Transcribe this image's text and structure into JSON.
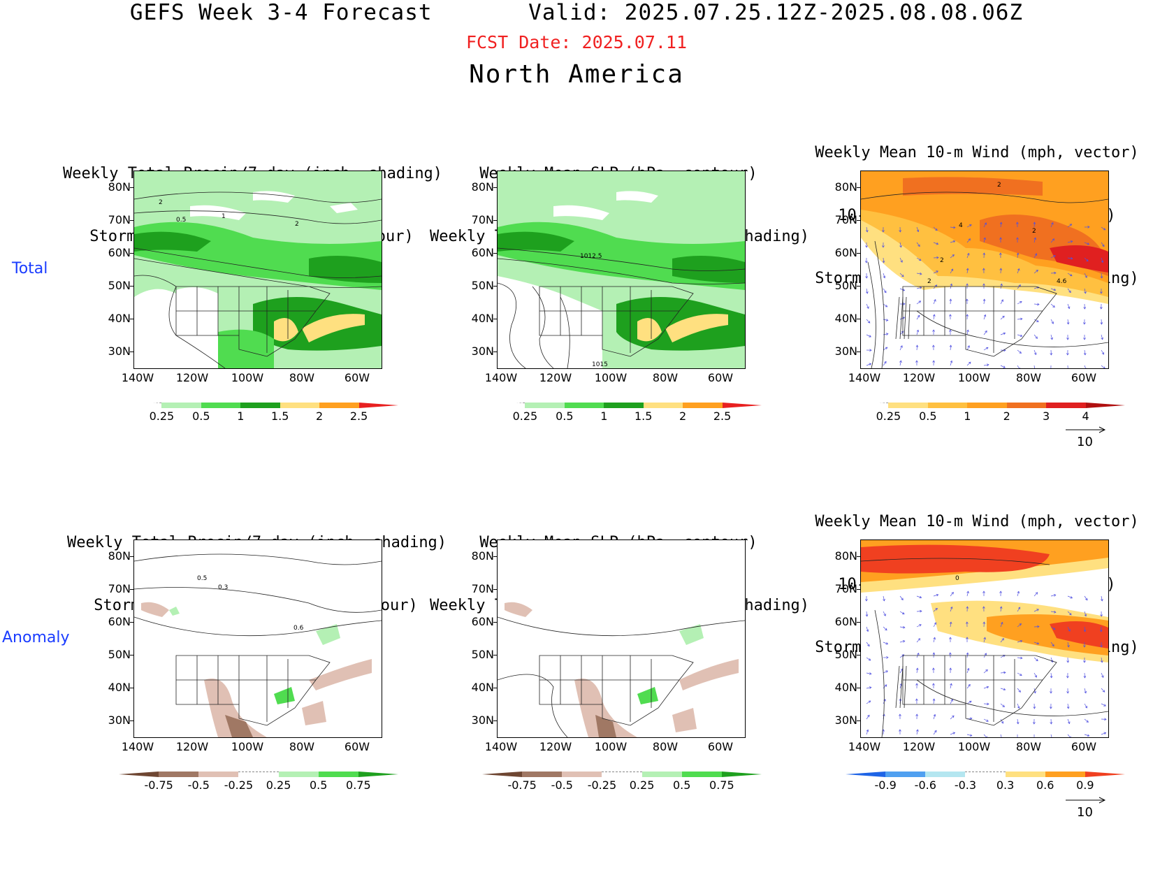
{
  "header": {
    "title": "GEFS Week 3-4 Forecast       Valid: 2025.07.25.12Z-2025.08.08.06Z",
    "fcst_date": "FCST Date: 2025.07.11",
    "region": "North America"
  },
  "rows": {
    "total_label": "Total",
    "anomaly_label": "Anomaly"
  },
  "panels": {
    "precip_track": {
      "title_line1": "Weekly Total Precip/7-day (inch, shading)",
      "title_line2": "Storm Track Density/7-day (contour)"
    },
    "slp_precip": {
      "title_line1": "Weekly Mean SLP (hPa, contour)",
      "title_line2": "Weekly Total Precip/7-day (inch, shading)"
    },
    "wind_track": {
      "title_line1": "Weekly Mean 10-m Wind (mph, vector)",
      "title_line2": "10-m Wind Speed (mph, contour)",
      "title_line3": "Storm Track Density/7-day (shading)"
    }
  },
  "axes": {
    "lat_labels": [
      "80N",
      "70N",
      "60N",
      "50N",
      "40N",
      "30N"
    ],
    "lon_labels": [
      "140W",
      "120W",
      "100W",
      "80W",
      "60W"
    ]
  },
  "contour_labels": {
    "total_precip": [
      "2",
      "0.5",
      "1",
      "2"
    ],
    "total_slp": [
      "1012.5",
      "1015"
    ],
    "total_wind": [
      "2",
      "4",
      "2",
      "2",
      "2",
      "4.6"
    ],
    "anom_precip": [
      "0.5",
      "0.3",
      "0.6"
    ],
    "anom_wind": [
      "0"
    ]
  },
  "colorbars": {
    "total_precip": {
      "labels": [
        "0.25",
        "0.5",
        "1",
        "1.5",
        "2",
        "2.5"
      ],
      "colors": [
        "#ffffff",
        "#b4f0b4",
        "#50dc50",
        "#1ea01e",
        "#ffe080",
        "#ffa020",
        "#e82020"
      ]
    },
    "total_track": {
      "labels": [
        "0.25",
        "0.5",
        "1",
        "2",
        "3",
        "4"
      ],
      "colors": [
        "#ffffff",
        "#ffe080",
        "#ffc040",
        "#ffa020",
        "#f07020",
        "#e02020",
        "#b01010"
      ]
    },
    "anom_precip": {
      "labels": [
        "-0.75",
        "-0.5",
        "-0.25",
        "0.25",
        "0.5",
        "0.75"
      ],
      "colors": [
        "#6e4632",
        "#a07864",
        "#e0c0b4",
        "#ffffff",
        "#b4f0b4",
        "#50dc50",
        "#1ea01e"
      ]
    },
    "anom_track": {
      "labels": [
        "-0.9",
        "-0.6",
        "-0.3",
        "0.3",
        "0.6",
        "0.9"
      ],
      "colors": [
        "#1e64e6",
        "#50a0f0",
        "#b4e6f0",
        "#ffffff",
        "#ffe080",
        "#ffa020",
        "#f04020"
      ]
    }
  },
  "vector_ref": "10",
  "colors": {
    "fcst_date": "#f02020",
    "row_labels": "#1a3cff",
    "vector": "#5050e0"
  }
}
